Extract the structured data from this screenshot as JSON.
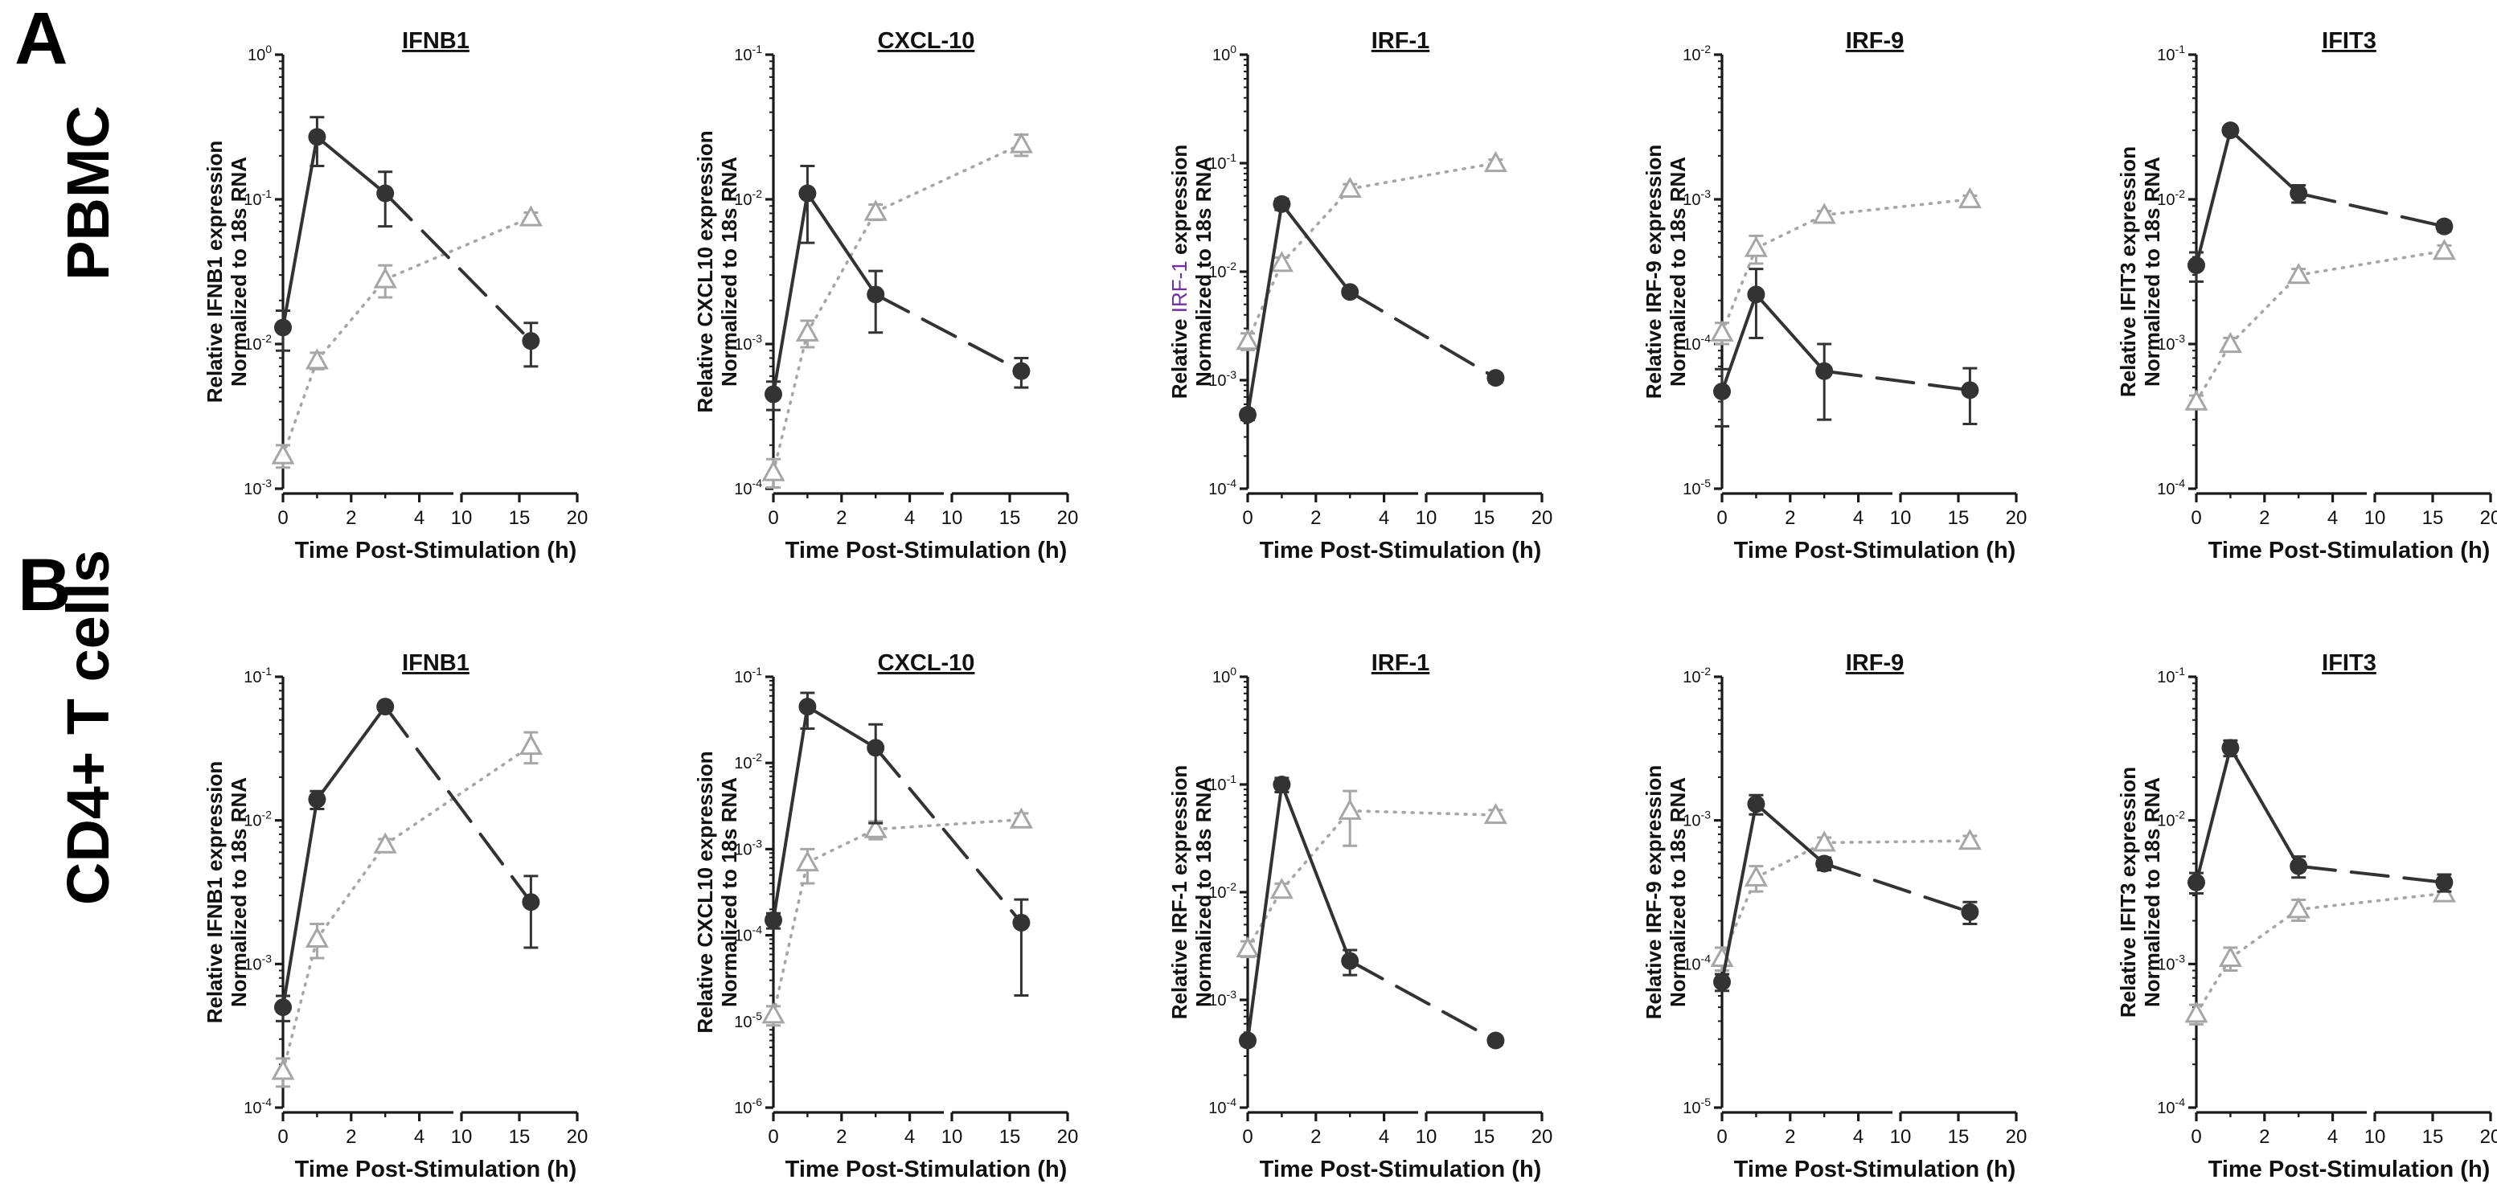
{
  "figure": {
    "rows": [
      {
        "letter": "A",
        "row_label": "PBMC"
      },
      {
        "letter": "B",
        "row_label": "CD4+ T cells"
      }
    ],
    "x_axis_title": "Time Post-Stimulation (h)",
    "x_ticks": [
      "0",
      "2",
      "4",
      "10",
      "15",
      "20"
    ],
    "ylabel_line2": "Normalized to 18s RNA",
    "colors": {
      "black_series": "#333333",
      "gray_series": "#a6a6a6",
      "axis": "#1a1a1a",
      "highlight": "#7030a0"
    }
  },
  "chart_data": [
    {
      "type": "line",
      "panel": "A",
      "title": "IFNB1",
      "ylabel_pre": "Relative ",
      "ylabel_hl": "",
      "ylabel_post": "IFNB1  expression",
      "ylog": [
        -3,
        0
      ],
      "y_ticks": [
        "10-3",
        "10-2",
        "10-1",
        "100"
      ],
      "x": [
        0,
        1,
        3,
        16
      ],
      "series": [
        {
          "name": "black",
          "marker": "circle",
          "values": [
            0.013,
            0.27,
            0.11,
            0.0105
          ],
          "err": [
            0.004,
            0.1,
            0.045,
            0.0035
          ]
        },
        {
          "name": "gray",
          "marker": "triangle",
          "values": [
            0.0017,
            0.0077,
            0.028,
            0.075
          ],
          "err": [
            0.0003,
            0.001,
            0.007,
            0.006
          ]
        }
      ]
    },
    {
      "type": "line",
      "panel": "A",
      "title": "CXCL-10",
      "ylabel_pre": "Relative ",
      "ylabel_hl": "",
      "ylabel_post": "CXCL10  expression",
      "ylog": [
        -4,
        -1
      ],
      "y_ticks": [
        "10-4",
        "10-3",
        "10-2",
        "10-1"
      ],
      "x": [
        0,
        1,
        3,
        16
      ],
      "series": [
        {
          "name": "black",
          "marker": "circle",
          "values": [
            0.00045,
            0.011,
            0.0022,
            0.00065
          ],
          "err": [
            0.0001,
            0.006,
            0.001,
            0.00015
          ]
        },
        {
          "name": "gray",
          "marker": "triangle",
          "values": [
            0.00013,
            0.0012,
            0.0082,
            0.024
          ],
          "err": [
            3e-05,
            0.00025,
            0.001,
            0.004
          ]
        }
      ]
    },
    {
      "type": "line",
      "panel": "A",
      "title": "IRF-1",
      "ylabel_pre": "Relative ",
      "ylabel_hl": "IRF-1",
      "ylabel_post": " expression",
      "ylog": [
        -4,
        0
      ],
      "y_ticks": [
        "10-4",
        "10-3",
        "10-2",
        "10-1",
        "100"
      ],
      "x": [
        0,
        1,
        3,
        16
      ],
      "series": [
        {
          "name": "black",
          "marker": "circle",
          "values": [
            0.00048,
            0.042,
            0.0065,
            0.00105
          ],
          "err": [
            5e-05,
            0.005,
            0.0005,
            0.0001
          ]
        },
        {
          "name": "gray",
          "marker": "triangle",
          "values": [
            0.0023,
            0.012,
            0.058,
            0.1
          ],
          "err": [
            0.0004,
            0.0015,
            0.006,
            0.008
          ]
        }
      ]
    },
    {
      "type": "line",
      "panel": "A",
      "title": "IRF-9",
      "ylabel_pre": "Relative ",
      "ylabel_hl": "",
      "ylabel_post": "IRF-9  expression",
      "ylog": [
        -5,
        -2
      ],
      "y_ticks": [
        "10-5",
        "10-4",
        "10-3",
        "10-2"
      ],
      "x": [
        0,
        1,
        3,
        16
      ],
      "series": [
        {
          "name": "black",
          "marker": "circle",
          "values": [
            4.7e-05,
            0.00022,
            6.5e-05,
            4.8e-05
          ],
          "err": [
            2e-05,
            0.00011,
            3.5e-05,
            2e-05
          ]
        },
        {
          "name": "gray",
          "marker": "triangle",
          "values": [
            0.00012,
            0.00046,
            0.00078,
            0.001
          ],
          "err": [
            2e-05,
            0.0001,
            5e-05,
            6e-05
          ]
        }
      ]
    },
    {
      "type": "line",
      "panel": "A",
      "title": "IFIT3",
      "ylabel_pre": "Relative ",
      "ylabel_hl": "",
      "ylabel_post": "IFIT3  expression",
      "ylog": [
        -4,
        -1
      ],
      "y_ticks": [
        "10-4",
        "10-3",
        "10-2",
        "10-1"
      ],
      "x": [
        0,
        1,
        3,
        16
      ],
      "series": [
        {
          "name": "black",
          "marker": "circle",
          "values": [
            0.0035,
            0.03,
            0.011,
            0.0065
          ],
          "err": [
            0.0008,
            0.002,
            0.0015,
            0.0005
          ]
        },
        {
          "name": "gray",
          "marker": "triangle",
          "values": [
            0.0004,
            0.001,
            0.003,
            0.0044
          ],
          "err": [
            4e-05,
            0.0001,
            0.0003,
            0.0004
          ]
        }
      ]
    },
    {
      "type": "line",
      "panel": "B",
      "title": "IFNB1",
      "ylabel_pre": "Relative ",
      "ylabel_hl": "",
      "ylabel_post": "IFNB1  expression",
      "ylog": [
        -4,
        -1
      ],
      "y_ticks": [
        "10-4",
        "10-3",
        "10-2",
        "10-1"
      ],
      "x": [
        0,
        1,
        3,
        16
      ],
      "series": [
        {
          "name": "black",
          "marker": "circle",
          "values": [
            0.0005,
            0.014,
            0.062,
            0.0027
          ],
          "err": [
            0.0001,
            0.002,
            0.004,
            0.0014
          ]
        },
        {
          "name": "gray",
          "marker": "triangle",
          "values": [
            0.00018,
            0.0015,
            0.0068,
            0.033
          ],
          "err": [
            4e-05,
            0.0004,
            0.0006,
            0.008
          ]
        }
      ]
    },
    {
      "type": "line",
      "panel": "B",
      "title": "CXCL-10",
      "ylabel_pre": "Relative ",
      "ylabel_hl": "",
      "ylabel_post": "CXCL10  expression",
      "ylog": [
        -6,
        -1
      ],
      "y_ticks": [
        "10-6",
        "10-5",
        "10-4",
        "10-3",
        "10-2",
        "10-1"
      ],
      "x": [
        0,
        1,
        3,
        16
      ],
      "series": [
        {
          "name": "black",
          "marker": "circle",
          "values": [
            0.00015,
            0.045,
            0.015,
            0.00014
          ],
          "err": [
            3e-05,
            0.02,
            0.013,
            0.00012
          ]
        },
        {
          "name": "gray",
          "marker": "triangle",
          "values": [
            1.2e-05,
            0.0007,
            0.0017,
            0.0022
          ],
          "err": [
            3e-06,
            0.0003,
            0.0004,
            0.0004
          ]
        }
      ]
    },
    {
      "type": "line",
      "panel": "B",
      "title": "IRF-1",
      "ylabel_pre": "Relative ",
      "ylabel_hl": "",
      "ylabel_post": "IRF-1  expression",
      "ylog": [
        -4,
        0
      ],
      "y_ticks": [
        "10-4",
        "10-3",
        "10-2",
        "10-1",
        "100"
      ],
      "x": [
        0,
        1,
        3,
        16
      ],
      "series": [
        {
          "name": "black",
          "marker": "circle",
          "values": [
            0.00042,
            0.1,
            0.0023,
            0.00042
          ],
          "err": [
            4e-05,
            0.015,
            0.0006,
            4e-05
          ]
        },
        {
          "name": "gray",
          "marker": "triangle",
          "values": [
            0.003,
            0.0105,
            0.057,
            0.052
          ],
          "err": [
            0.0005,
            0.0015,
            0.03,
            0.006
          ]
        }
      ]
    },
    {
      "type": "line",
      "panel": "B",
      "title": "IRF-9",
      "ylabel_pre": "Relative ",
      "ylabel_hl": "",
      "ylabel_post": "IRF-9  expression",
      "ylog": [
        -5,
        -2
      ],
      "y_ticks": [
        "10-5",
        "10-4",
        "10-3",
        "10-2"
      ],
      "x": [
        0,
        1,
        3,
        16
      ],
      "series": [
        {
          "name": "black",
          "marker": "circle",
          "values": [
            7.5e-05,
            0.0013,
            0.0005,
            0.00023
          ],
          "err": [
            1e-05,
            0.0002,
            5e-05,
            4e-05
          ]
        },
        {
          "name": "gray",
          "marker": "triangle",
          "values": [
            0.00011,
            0.0004,
            0.0007,
            0.00072
          ],
          "err": [
            2e-05,
            8e-05,
            6e-05,
            6e-05
          ]
        }
      ]
    },
    {
      "type": "line",
      "panel": "B",
      "title": "IFIT3",
      "ylabel_pre": "Relative ",
      "ylabel_hl": "",
      "ylabel_post": "IFIT3  expression",
      "ylog": [
        -4,
        -1
      ],
      "y_ticks": [
        "10-4",
        "10-3",
        "10-2",
        "10-1"
      ],
      "x": [
        0,
        1,
        3,
        16
      ],
      "series": [
        {
          "name": "black",
          "marker": "circle",
          "values": [
            0.0037,
            0.032,
            0.0048,
            0.0037
          ],
          "err": [
            0.0006,
            0.004,
            0.0008,
            0.0005
          ]
        },
        {
          "name": "gray",
          "marker": "triangle",
          "values": [
            0.00045,
            0.0011,
            0.0024,
            0.0031
          ],
          "err": [
            7e-05,
            0.0002,
            0.0004,
            0.0003
          ]
        }
      ]
    }
  ]
}
